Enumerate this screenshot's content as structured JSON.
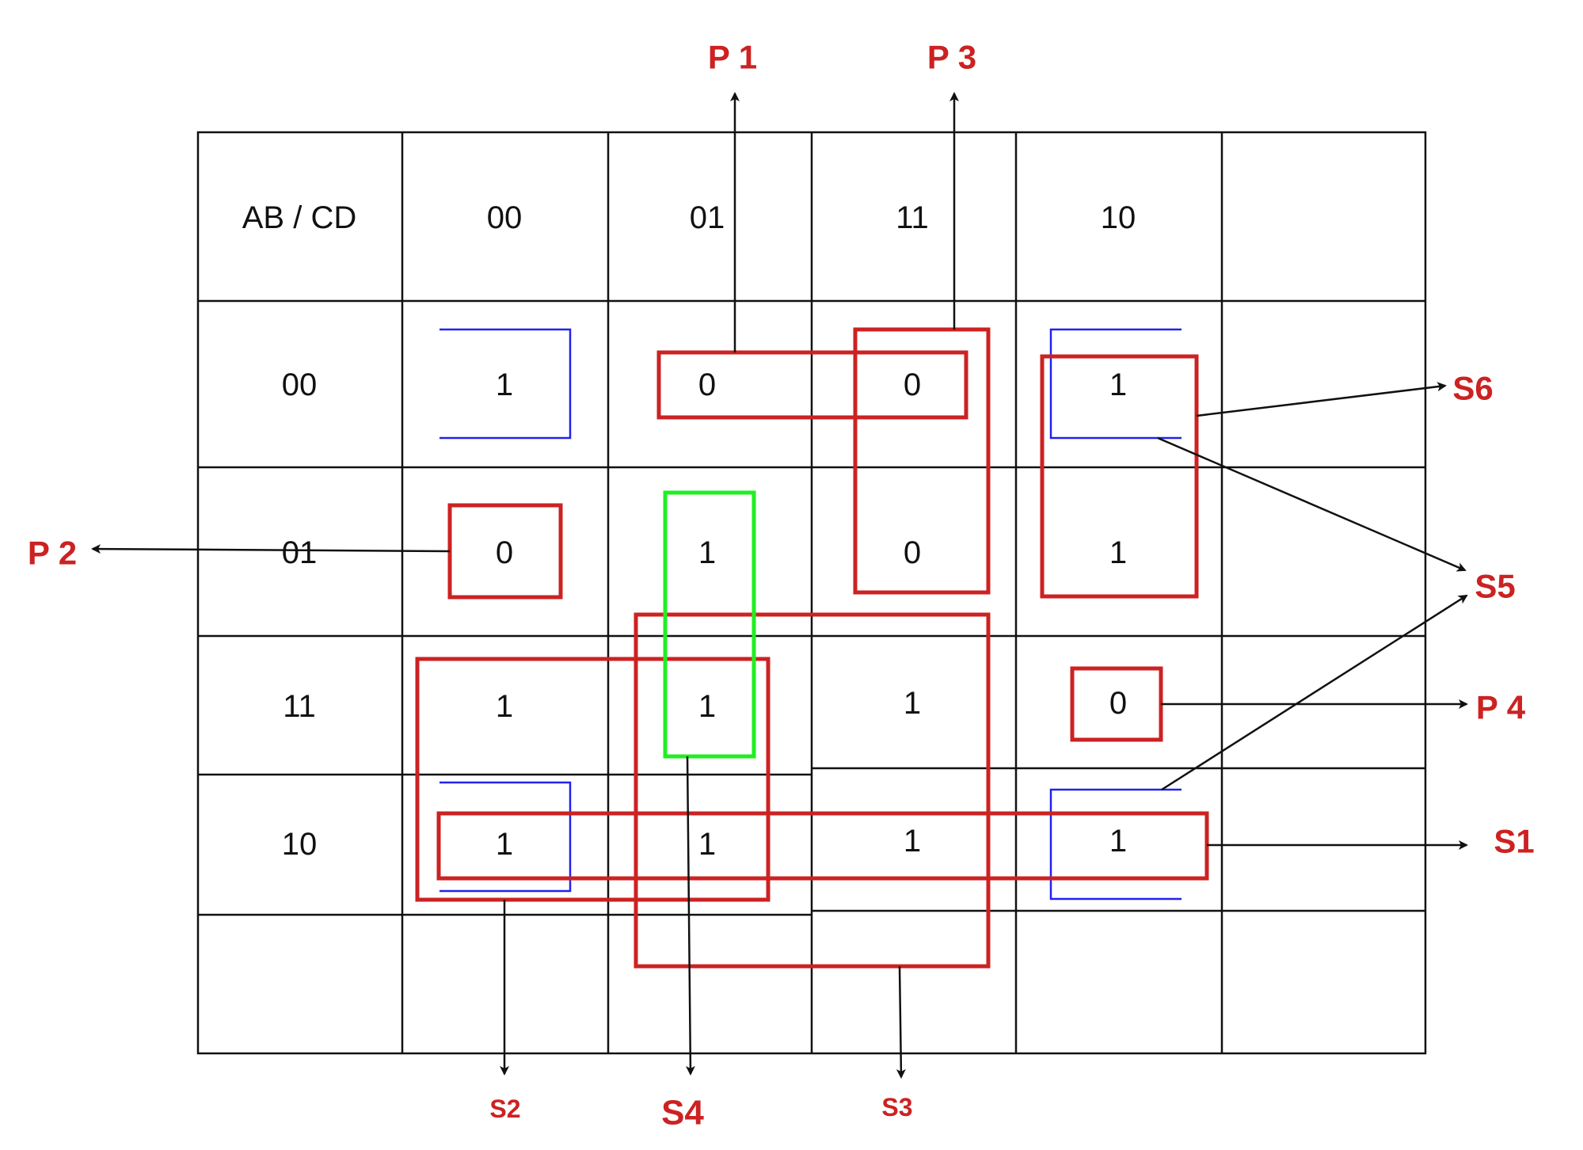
{
  "kmap": {
    "header_label": "AB / CD",
    "column_headers": [
      "00",
      "01",
      "11",
      "10"
    ],
    "row_headers": [
      "00",
      "01",
      "11",
      "10"
    ],
    "cells": [
      [
        "1",
        "0",
        "0",
        "1"
      ],
      [
        "0",
        "1",
        "0",
        "1"
      ],
      [
        "1",
        "1",
        "1",
        "0"
      ],
      [
        "1",
        "1",
        "1",
        "1"
      ]
    ]
  },
  "labels": {
    "p1": "P 1",
    "p2": "P 2",
    "p3": "P 3",
    "p4": "P 4",
    "s1": "S1",
    "s2": "S2",
    "s3": "S3",
    "s4": "S4",
    "s5": "S5",
    "s6": "S6"
  },
  "colors": {
    "grid": "#111111",
    "group_red": "#cc2222",
    "group_green": "#22ee22",
    "group_blue": "#2222ee",
    "label_red": "#cc2222"
  }
}
